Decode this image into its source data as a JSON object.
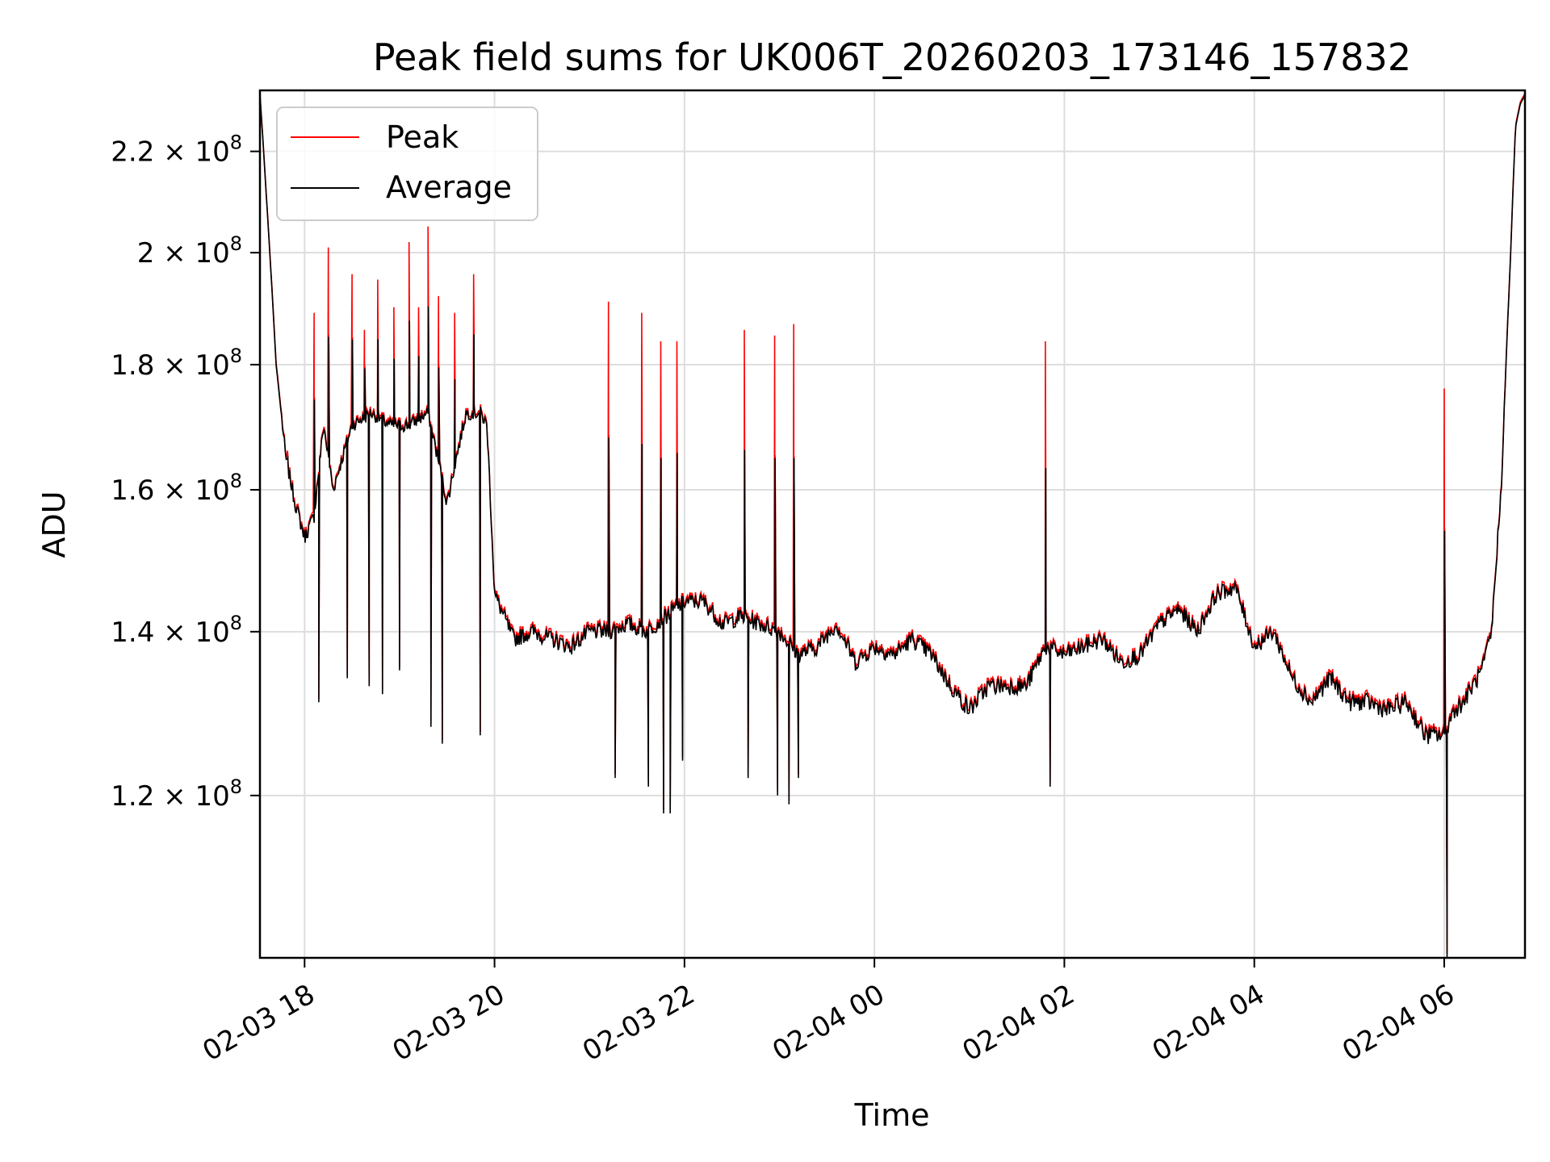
{
  "chart_data": {
    "type": "line",
    "title": "Peak field sums for UK006T_20260203_173146_157832",
    "xlabel": "Time",
    "ylabel": "ADU",
    "yscale": "log",
    "ylim": [
      103000000,
      233000000
    ],
    "xlim_hours": [
      17.53,
      30.85
    ],
    "grid": true,
    "legend_position": "upper-left",
    "x_ticks": [
      {
        "h": 18,
        "label": "02-03 18"
      },
      {
        "h": 20,
        "label": "02-03 20"
      },
      {
        "h": 22,
        "label": "02-03 22"
      },
      {
        "h": 24,
        "label": "02-04 00"
      },
      {
        "h": 26,
        "label": "02-04 02"
      },
      {
        "h": 28,
        "label": "02-04 04"
      },
      {
        "h": 30,
        "label": "02-04 06"
      }
    ],
    "y_ticks": [
      {
        "v": 120000000,
        "mant": "1.2",
        "exp": "8"
      },
      {
        "v": 140000000,
        "mant": "1.4",
        "exp": "8"
      },
      {
        "v": 160000000,
        "mant": "1.6",
        "exp": "8"
      },
      {
        "v": 180000000,
        "mant": "1.8",
        "exp": "8"
      },
      {
        "v": 200000000,
        "mant": "2",
        "exp": "8"
      },
      {
        "v": 220000000,
        "mant": "2.2",
        "exp": "8"
      }
    ],
    "series": [
      {
        "name": "Peak",
        "color": "#ff0000"
      },
      {
        "name": "Average",
        "color": "#000000"
      }
    ],
    "baseline_hours": [
      17.53,
      17.6,
      17.7,
      17.8,
      17.9,
      18.0,
      18.1,
      18.2,
      18.3,
      18.5,
      18.7,
      18.9,
      19.1,
      19.3,
      19.5,
      19.7,
      19.85,
      19.92,
      20.0,
      20.2,
      20.4,
      20.6,
      20.8,
      21.0,
      21.2,
      21.4,
      21.6,
      21.8,
      22.0,
      22.2,
      22.4,
      22.6,
      22.8,
      23.0,
      23.2,
      23.4,
      23.6,
      23.8,
      24.0,
      24.2,
      24.4,
      24.6,
      24.8,
      25.0,
      25.2,
      25.4,
      25.6,
      25.8,
      26.0,
      26.2,
      26.4,
      26.6,
      26.8,
      27.0,
      27.2,
      27.4,
      27.6,
      27.8,
      28.0,
      28.2,
      28.4,
      28.6,
      28.8,
      29.0,
      29.2,
      29.4,
      29.6,
      29.8,
      30.0,
      30.1,
      30.2,
      30.4,
      30.5,
      30.6,
      30.7,
      30.75,
      30.8,
      30.85
    ],
    "baseline_values_e6": [
      232,
      210,
      180,
      165,
      158,
      153,
      156,
      170,
      160,
      170,
      172,
      170,
      170,
      172,
      158,
      172,
      172,
      170,
      145,
      139,
      140,
      139,
      138,
      140,
      140,
      141,
      140,
      142,
      144,
      144,
      141,
      142,
      141,
      140,
      137,
      138,
      141,
      136,
      138,
      137,
      139,
      137,
      133,
      130,
      133,
      133,
      133,
      138,
      137,
      138,
      139,
      136,
      137,
      141,
      143,
      140,
      145,
      146,
      138,
      140,
      134,
      131,
      134,
      131,
      131,
      130,
      131,
      127,
      127,
      130,
      131,
      135,
      140,
      160,
      200,
      225,
      230,
      232
    ],
    "peak_spikes": [
      {
        "h": 17.82,
        "peak": 166
      },
      {
        "h": 18.1,
        "peak": 189
      },
      {
        "h": 18.25,
        "peak": 201
      },
      {
        "h": 18.5,
        "peak": 196
      },
      {
        "h": 18.63,
        "peak": 186
      },
      {
        "h": 18.77,
        "peak": 195
      },
      {
        "h": 18.94,
        "peak": 190
      },
      {
        "h": 19.1,
        "peak": 202
      },
      {
        "h": 19.2,
        "peak": 190
      },
      {
        "h": 19.3,
        "peak": 205
      },
      {
        "h": 19.41,
        "peak": 192
      },
      {
        "h": 19.58,
        "peak": 189
      },
      {
        "h": 19.78,
        "peak": 196
      },
      {
        "h": 21.2,
        "peak": 191
      },
      {
        "h": 21.55,
        "peak": 189
      },
      {
        "h": 21.75,
        "peak": 184
      },
      {
        "h": 21.92,
        "peak": 184
      },
      {
        "h": 22.63,
        "peak": 186
      },
      {
        "h": 22.95,
        "peak": 185
      },
      {
        "h": 23.15,
        "peak": 187
      },
      {
        "h": 25.8,
        "peak": 184
      },
      {
        "h": 30.0,
        "peak": 176
      }
    ],
    "dips": [
      {
        "h": 18.15,
        "low": 131
      },
      {
        "h": 18.45,
        "low": 134
      },
      {
        "h": 18.68,
        "low": 133
      },
      {
        "h": 18.82,
        "low": 132
      },
      {
        "h": 19.0,
        "low": 135
      },
      {
        "h": 19.33,
        "low": 128
      },
      {
        "h": 19.45,
        "low": 126
      },
      {
        "h": 19.85,
        "low": 127
      },
      {
        "h": 21.27,
        "low": 122
      },
      {
        "h": 21.62,
        "low": 121
      },
      {
        "h": 21.78,
        "low": 118
      },
      {
        "h": 21.85,
        "low": 118
      },
      {
        "h": 21.98,
        "low": 124
      },
      {
        "h": 22.67,
        "low": 122
      },
      {
        "h": 22.98,
        "low": 120
      },
      {
        "h": 23.1,
        "low": 119
      },
      {
        "h": 23.2,
        "low": 122
      },
      {
        "h": 25.85,
        "low": 121
      },
      {
        "h": 30.03,
        "low": 103
      }
    ]
  },
  "legend": {
    "peak_label": "Peak",
    "average_label": "Average"
  }
}
